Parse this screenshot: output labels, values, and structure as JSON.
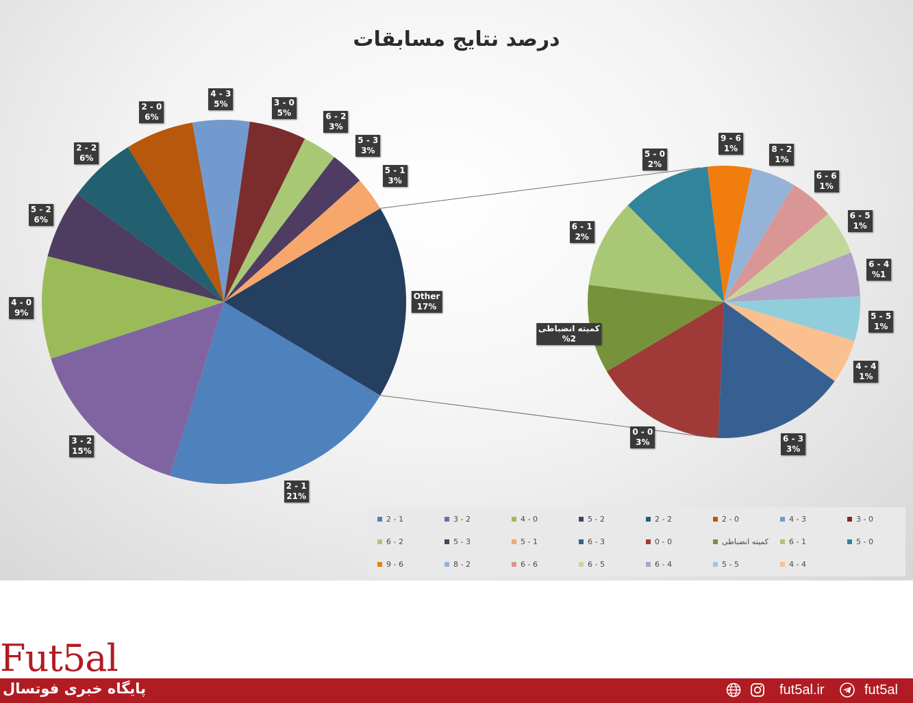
{
  "chart_data": {
    "type": "pie",
    "subtype": "pie-of-pie",
    "title": "درصد نتایج مسابقات",
    "main_pie": {
      "slices": [
        {
          "label": "2 - 1",
          "pct_label": "21%",
          "value": 21,
          "color": "#4F81BD"
        },
        {
          "label": "3 - 2",
          "pct_label": "15%",
          "value": 15,
          "color": "#8064A2"
        },
        {
          "label": "4 - 0",
          "pct_label": "9%",
          "value": 9,
          "color": "#9BBB59"
        },
        {
          "label": "5 - 2",
          "pct_label": "6%",
          "value": 6,
          "color": "#4F3D61"
        },
        {
          "label": "2 - 2",
          "pct_label": "6%",
          "value": 6,
          "color": "#22606F"
        },
        {
          "label": "2 - 0",
          "pct_label": "6%",
          "value": 6,
          "color": "#B7580D"
        },
        {
          "label": "4 - 3",
          "pct_label": "5%",
          "value": 5,
          "color": "#729ACF"
        },
        {
          "label": "3 - 0",
          "pct_label": "5%",
          "value": 5,
          "color": "#7B2C2C"
        },
        {
          "label": "6 - 2",
          "pct_label": "3%",
          "value": 3,
          "color": "#A9C876"
        },
        {
          "label": "5 - 3",
          "pct_label": "3%",
          "value": 3,
          "color": "#4E3C62"
        },
        {
          "label": "5 - 1",
          "pct_label": "3%",
          "value": 3,
          "color": "#F7A76C"
        },
        {
          "label": "Other",
          "pct_label": "17%",
          "value": 17,
          "color": "#243F60"
        }
      ]
    },
    "secondary_pie": {
      "slices": [
        {
          "label": "9 - 6",
          "pct_label": "1%",
          "value": 1,
          "color": "#F07D0E"
        },
        {
          "label": "8 - 2",
          "pct_label": "1%",
          "value": 1,
          "color": "#95B3D7"
        },
        {
          "label": "6 - 6",
          "pct_label": "1%",
          "value": 1,
          "color": "#DA9694"
        },
        {
          "label": "6 - 5",
          "pct_label": "1%",
          "value": 1,
          "color": "#C4D79B"
        },
        {
          "label": "6 - 4",
          "pct_label": "%1",
          "value": 1,
          "color": "#B1A0C7"
        },
        {
          "label": "5 - 5",
          "pct_label": "1%",
          "value": 1,
          "color": "#92CDDC"
        },
        {
          "label": "4 - 4",
          "pct_label": "1%",
          "value": 1,
          "color": "#FAC090"
        },
        {
          "label": "6 - 3",
          "pct_label": "3%",
          "value": 3,
          "color": "#366092"
        },
        {
          "label": "0 - 0",
          "pct_label": "3%",
          "value": 3,
          "color": "#9F3A38"
        },
        {
          "label": "کمیته انضباطی",
          "pct_label": "%2",
          "value": 2,
          "color": "#76933C"
        },
        {
          "label": "6 - 1",
          "pct_label": "2%",
          "value": 2,
          "color": "#A9C876"
        },
        {
          "label": "5 - 0",
          "pct_label": "2%",
          "value": 2,
          "color": "#31849B"
        }
      ]
    },
    "legend": [
      {
        "label": "2 - 1",
        "color": "#4F81BD"
      },
      {
        "label": "3 - 2",
        "color": "#8064A2"
      },
      {
        "label": "4 - 0",
        "color": "#9BBB59"
      },
      {
        "label": "5 - 2",
        "color": "#4F3D61"
      },
      {
        "label": "2 - 2",
        "color": "#22606F"
      },
      {
        "label": "2 - 0",
        "color": "#B7580D"
      },
      {
        "label": "4 - 3",
        "color": "#729ACF"
      },
      {
        "label": "3 - 0",
        "color": "#7B2C2C"
      },
      {
        "label": "6 - 2",
        "color": "#A9C876"
      },
      {
        "label": "5 - 3",
        "color": "#4E3C62"
      },
      {
        "label": "5 - 1",
        "color": "#F7A76C"
      },
      {
        "label": "6 - 3",
        "color": "#366092"
      },
      {
        "label": "0 - 0",
        "color": "#9F3A38"
      },
      {
        "label": "کمیته انضباطی",
        "color": "#76933C"
      },
      {
        "label": "6 - 1",
        "color": "#A9C876"
      },
      {
        "label": "5 - 0",
        "color": "#31849B"
      },
      {
        "label": "9 - 6",
        "color": "#F07D0E"
      },
      {
        "label": "8 - 2",
        "color": "#95B3D7"
      },
      {
        "label": "6 - 6",
        "color": "#DA9694"
      },
      {
        "label": "6 - 5",
        "color": "#C4D79B"
      },
      {
        "label": "6 - 4",
        "color": "#B1A0C7"
      },
      {
        "label": "5 - 5",
        "color": "#92CDDC"
      },
      {
        "label": "4 - 4",
        "color": "#FAC090"
      }
    ],
    "legend_position": "bottom-right",
    "grid": false
  },
  "branding": {
    "logo_text": "Fut5al",
    "tagline": "پایگاه خبری فوتسال",
    "site": "fut5al.ir",
    "handle": "fut5al",
    "icons": [
      "globe-icon",
      "instagram-icon",
      "telegram-icon"
    ],
    "accent_color": "#B01C22"
  }
}
